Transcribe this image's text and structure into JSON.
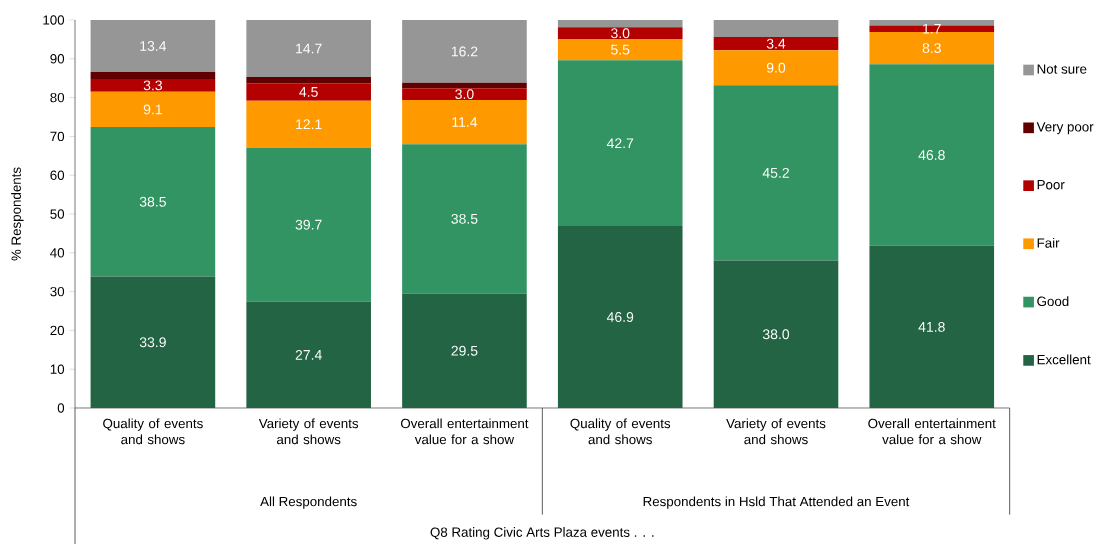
{
  "chart_data": {
    "type": "bar",
    "stacked": true,
    "ylabel": "% Respondents",
    "categories": [
      "Quality of events and shows",
      "Variety of events and shows",
      "Overall entertainment value for a show",
      "Quality of events and shows",
      "Variety of events and shows",
      "Overall entertainment value for a show"
    ],
    "annotations": [
      "All Respondents",
      "Respondents in Hsld That Attended an Event",
      "Q8 Rating Civic Arts Plaza events . . ."
    ],
    "ylim": [
      0,
      100
    ],
    "yticks": [
      0,
      10,
      20,
      30,
      40,
      50,
      60,
      70,
      80,
      90,
      100
    ],
    "grid": false,
    "legend": "right",
    "series": [
      {
        "name": "Excellent",
        "color": "#236445",
        "values": [
          33.9,
          27.4,
          29.5,
          46.9,
          38.0,
          41.8
        ],
        "value_labels": [
          "33.9",
          "27.4",
          "29.5",
          "46.9",
          "38.0",
          "41.8"
        ]
      },
      {
        "name": "Good",
        "color": "#339463",
        "values": [
          38.5,
          39.7,
          38.5,
          42.7,
          45.2,
          46.8
        ],
        "value_labels": [
          "38.5",
          "39.7",
          "38.5",
          "42.7",
          "45.2",
          "46.8"
        ]
      },
      {
        "name": "Fair",
        "color": "#ff9900",
        "values": [
          9.1,
          12.1,
          11.4,
          5.5,
          9.0,
          8.3
        ],
        "value_labels": [
          "9.1",
          "12.1",
          "11.4",
          "5.5",
          "9.0",
          "8.3"
        ]
      },
      {
        "name": "Poor",
        "color": "#b30000",
        "values": [
          3.3,
          4.5,
          3.0,
          3.0,
          3.4,
          1.7
        ],
        "value_labels": [
          "3.3",
          "4.5",
          "3.0",
          "3.0",
          "3.4",
          "1.7"
        ]
      },
      {
        "name": "Very poor",
        "color": "#600000",
        "values": [
          1.8,
          1.6,
          1.4,
          0,
          0,
          0
        ],
        "value_labels": [
          null,
          null,
          null,
          null,
          null,
          null
        ]
      },
      {
        "name": "Not sure",
        "color": "#969696",
        "values": [
          13.4,
          14.7,
          16.2,
          1.9,
          4.4,
          1.4
        ],
        "value_labels": [
          "13.4",
          "14.7",
          "16.2",
          null,
          null,
          null
        ]
      }
    ]
  }
}
